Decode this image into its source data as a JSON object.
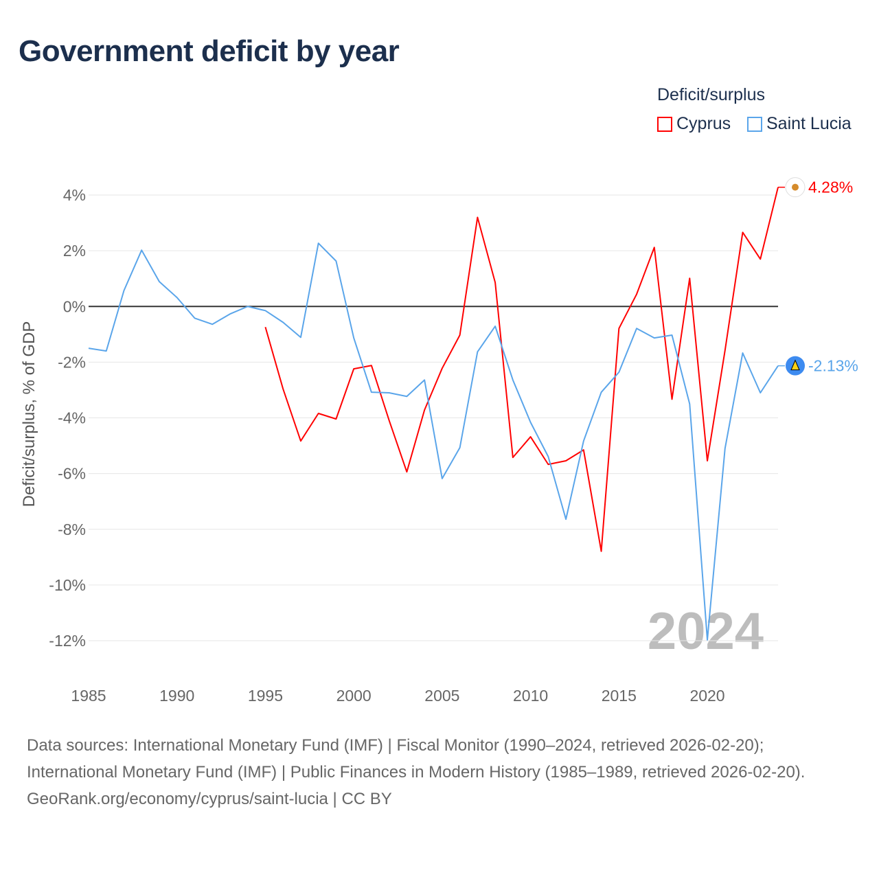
{
  "title": "Government deficit by year",
  "legend": {
    "title": "Deficit/surplus",
    "items": [
      {
        "name": "Cyprus",
        "color": "#ff0000"
      },
      {
        "name": "Saint Lucia",
        "color": "#5aa5ea"
      }
    ]
  },
  "watermark_year": "2024",
  "sources": {
    "line1": "Data sources: International Monetary Fund (IMF) | Fiscal Monitor (1990–2024, retrieved 2026-02-20); International Monetary Fund (IMF) | Public Finances in Modern History (1985–1989, retrieved 2026-02-20).",
    "line2": "GeoRank.org/economy/cyprus/saint-lucia | CC BY"
  },
  "chart_data": {
    "type": "line",
    "title": "Government deficit by year",
    "xlabel": "",
    "ylabel": "Deficit/surplus, % of GDP",
    "xlim": [
      1985,
      2024
    ],
    "ylim": [
      -12,
      4
    ],
    "x_ticks": [
      "1985",
      "1990",
      "1995",
      "2000",
      "2005",
      "2010",
      "2015",
      "2020"
    ],
    "y_ticks": [
      {
        "v": 4,
        "label": "4%"
      },
      {
        "v": 2,
        "label": "2%"
      },
      {
        "v": 0,
        "label": "0%"
      },
      {
        "v": -2,
        "label": "-2%"
      },
      {
        "v": -4,
        "label": "-4%"
      },
      {
        "v": -6,
        "label": "-6%"
      },
      {
        "v": -8,
        "label": "-8%"
      },
      {
        "v": -10,
        "label": "-10%"
      },
      {
        "v": -12,
        "label": "-12%"
      }
    ],
    "grid": true,
    "legend_position": "top-right",
    "series": [
      {
        "name": "Cyprus",
        "color": "#ff0000",
        "end_label": "4.28%",
        "start": 1995,
        "values": [
          -0.74,
          -2.96,
          -4.83,
          -3.84,
          -4.04,
          -2.24,
          -2.12,
          -4.09,
          -5.94,
          -3.72,
          -2.22,
          -1.03,
          3.2,
          0.86,
          -5.42,
          -4.68,
          -5.67,
          -5.54,
          -5.15,
          -8.79,
          -0.79,
          0.44,
          2.12,
          -3.33,
          1.01,
          -5.54,
          -1.58,
          2.66,
          1.7,
          4.28
        ]
      },
      {
        "name": "Saint Lucia",
        "color": "#5aa5ea",
        "end_label": "-2.13%",
        "start": 1985,
        "values": [
          -1.5,
          -1.6,
          0.57,
          2.02,
          0.89,
          0.32,
          -0.42,
          -0.64,
          -0.27,
          0.0,
          -0.15,
          -0.57,
          -1.11,
          2.27,
          1.63,
          -1.13,
          -3.08,
          -3.1,
          -3.23,
          -2.64,
          -6.18,
          -5.07,
          -1.63,
          -0.71,
          -2.64,
          -4.16,
          -5.39,
          -7.64,
          -4.83,
          -3.08,
          -2.36,
          -0.79,
          -1.13,
          -1.03,
          -3.5,
          -11.97,
          -5.1,
          -1.67,
          -3.1,
          -2.13
        ]
      }
    ]
  }
}
